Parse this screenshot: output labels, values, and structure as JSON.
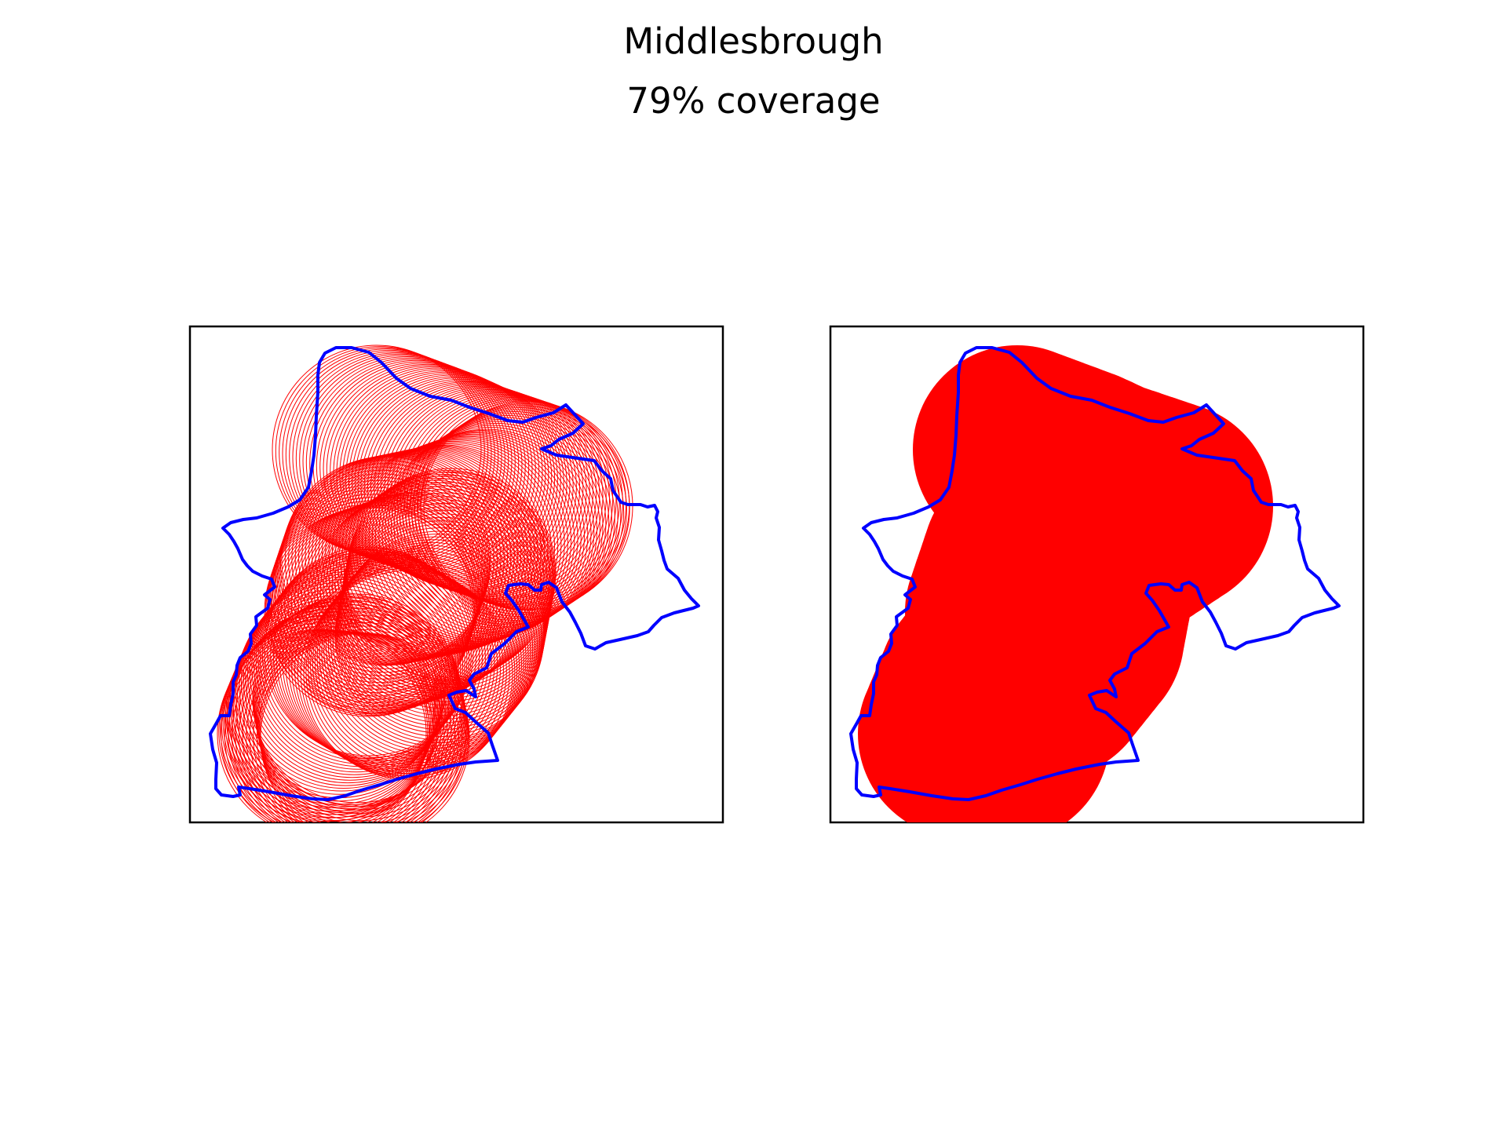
{
  "figure": {
    "title": "Middlesbrough",
    "subtitle": "79% coverage"
  },
  "colors": {
    "boundary": "#0000ff",
    "coverage": "#ff0000",
    "frame": "#000000",
    "background": "#ffffff"
  },
  "panels": [
    {
      "id": "buffer-circles",
      "style": "outlined-circles"
    },
    {
      "id": "coverage-union",
      "style": "filled-union"
    }
  ]
}
